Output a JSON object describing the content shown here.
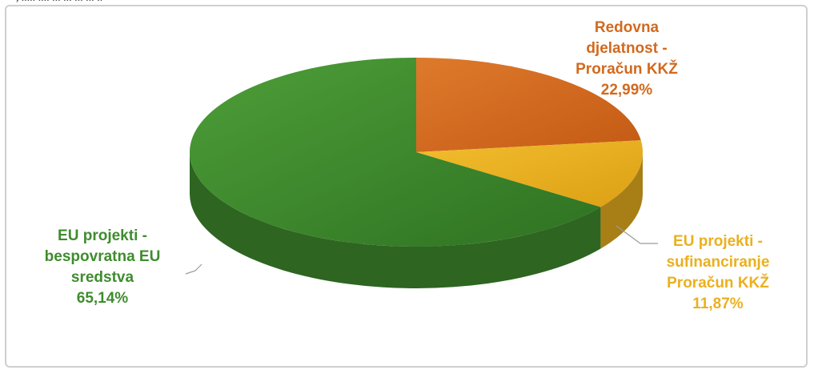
{
  "top_fragment": ", ..... .... ... ... ... ... ..",
  "chart_data": {
    "type": "pie",
    "style": "3d",
    "title": "",
    "slices": [
      {
        "label_lines": [
          "Redovna",
          "djelatnost -",
          "Proračun KKŽ"
        ],
        "value": 22.99,
        "value_label": "22,99%",
        "color": "#D2691E"
      },
      {
        "label_lines": [
          "EU projekti -",
          "sufinanciranje",
          "Proračun KKŽ"
        ],
        "value": 11.87,
        "value_label": "11,87%",
        "color": "#EAB01E"
      },
      {
        "label_lines": [
          "EU projekti -",
          "bespovratna EU",
          "sredstva"
        ],
        "value": 65.14,
        "value_label": "65,14%",
        "color": "#3F8C2E"
      }
    ]
  }
}
